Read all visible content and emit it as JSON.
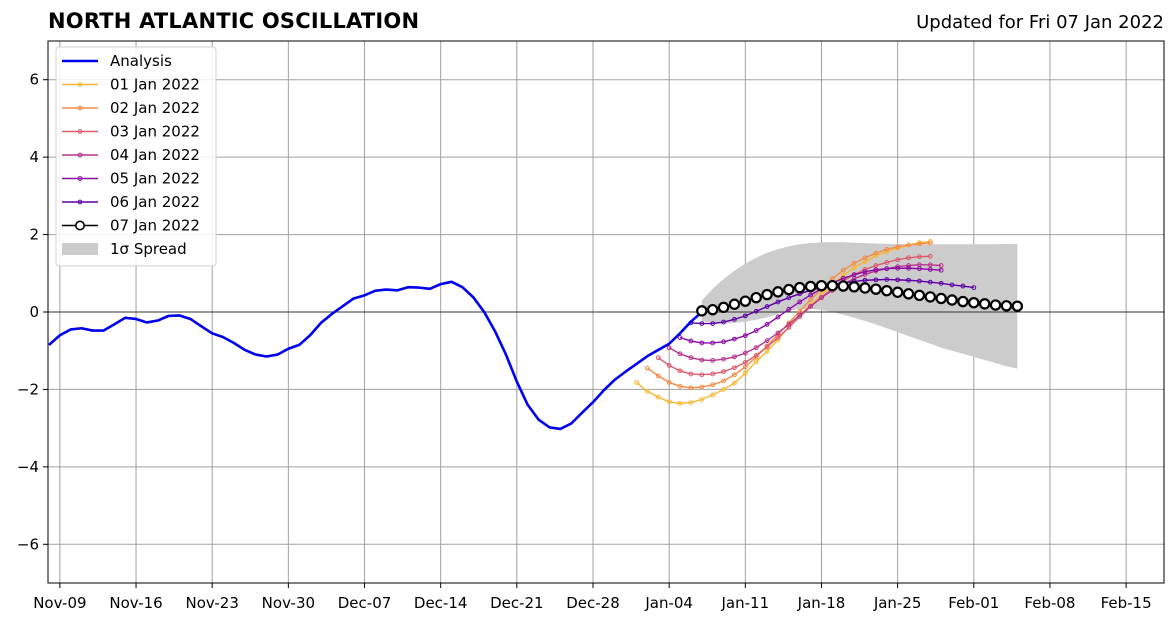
{
  "chart_data": {
    "type": "line",
    "title": "NORTH ATLANTIC OSCILLATION",
    "subtitle": "Updated for Fri 07 Jan 2022",
    "xlabel": "",
    "ylabel": "",
    "x_start_date": "2021-11-08",
    "xlim_days": [
      0,
      100
    ],
    "ylim": [
      -7,
      7
    ],
    "yticks": [
      -6,
      -4,
      -2,
      0,
      2,
      4,
      6
    ],
    "xticks": [
      {
        "day": 1,
        "label": "Nov-09"
      },
      {
        "day": 8,
        "label": "Nov-16"
      },
      {
        "day": 15,
        "label": "Nov-23"
      },
      {
        "day": 22,
        "label": "Nov-30"
      },
      {
        "day": 29,
        "label": "Dec-07"
      },
      {
        "day": 36,
        "label": "Dec-14"
      },
      {
        "day": 43,
        "label": "Dec-21"
      },
      {
        "day": 50,
        "label": "Dec-28"
      },
      {
        "day": 57,
        "label": "Jan-04"
      },
      {
        "day": 64,
        "label": "Jan-11"
      },
      {
        "day": 71,
        "label": "Jan-18"
      },
      {
        "day": 78,
        "label": "Jan-25"
      },
      {
        "day": 85,
        "label": "Feb-01"
      },
      {
        "day": 92,
        "label": "Feb-08"
      },
      {
        "day": 99,
        "label": "Feb-15"
      }
    ],
    "grid": true,
    "legend_position": "top-left",
    "analysis": {
      "name": "Analysis",
      "color": "#0000ee",
      "x_start": 0,
      "values": [
        -0.85,
        -0.6,
        -0.45,
        -0.42,
        -0.48,
        -0.48,
        -0.32,
        -0.15,
        -0.18,
        -0.27,
        -0.22,
        -0.1,
        -0.09,
        -0.18,
        -0.37,
        -0.55,
        -0.65,
        -0.8,
        -0.98,
        -1.1,
        -1.15,
        -1.1,
        -0.95,
        -0.85,
        -0.6,
        -0.28,
        -0.05,
        0.15,
        0.35,
        0.43,
        0.55,
        0.58,
        0.56,
        0.64,
        0.63,
        0.6,
        0.72,
        0.78,
        0.64,
        0.38,
        0.0,
        -0.5,
        -1.1,
        -1.8,
        -2.4,
        -2.78,
        -2.98,
        -3.02,
        -2.88,
        -2.6,
        -2.33,
        -2.02,
        -1.75,
        -1.54,
        -1.34,
        -1.14,
        -0.98,
        -0.82,
        -0.55,
        -0.25,
        0.0
      ]
    },
    "forecasts": [
      {
        "name": "01 Jan 2022",
        "color": "#f9b733",
        "x_start": 54,
        "values": [
          -1.82,
          -2.05,
          -2.2,
          -2.32,
          -2.36,
          -2.34,
          -2.26,
          -2.14,
          -2.0,
          -1.84,
          -1.58,
          -1.28,
          -1.02,
          -0.72,
          -0.38,
          -0.08,
          0.18,
          0.45,
          0.7,
          0.95,
          1.14,
          1.3,
          1.45,
          1.56,
          1.65,
          1.73,
          1.79,
          1.82
        ]
      },
      {
        "name": "02 Jan 2022",
        "color": "#f48c46",
        "x_start": 55,
        "values": [
          -1.45,
          -1.65,
          -1.82,
          -1.92,
          -1.96,
          -1.94,
          -1.88,
          -1.78,
          -1.62,
          -1.42,
          -1.16,
          -0.88,
          -0.58,
          -0.28,
          0.02,
          0.32,
          0.58,
          0.86,
          1.08,
          1.26,
          1.4,
          1.52,
          1.62,
          1.68,
          1.73,
          1.76,
          1.78
        ]
      },
      {
        "name": "03 Jan 2022",
        "color": "#dc5a6e",
        "x_start": 56,
        "values": [
          -1.18,
          -1.38,
          -1.52,
          -1.6,
          -1.62,
          -1.6,
          -1.54,
          -1.44,
          -1.3,
          -1.12,
          -0.9,
          -0.66,
          -0.4,
          -0.12,
          0.14,
          0.38,
          0.6,
          0.8,
          0.97,
          1.1,
          1.2,
          1.28,
          1.35,
          1.4,
          1.43,
          1.44
        ]
      },
      {
        "name": "04 Jan 2022",
        "color": "#b8338e",
        "x_start": 57,
        "values": [
          -0.92,
          -1.08,
          -1.18,
          -1.24,
          -1.25,
          -1.22,
          -1.16,
          -1.06,
          -0.92,
          -0.74,
          -0.54,
          -0.32,
          -0.08,
          0.15,
          0.37,
          0.56,
          0.72,
          0.86,
          0.97,
          1.06,
          1.12,
          1.17,
          1.2,
          1.22,
          1.22,
          1.2
        ]
      },
      {
        "name": "05 Jan 2022",
        "color": "#8b0aa5",
        "x_start": 58,
        "values": [
          -0.66,
          -0.75,
          -0.8,
          -0.8,
          -0.77,
          -0.7,
          -0.61,
          -0.48,
          -0.32,
          -0.13,
          0.07,
          0.26,
          0.44,
          0.6,
          0.75,
          0.87,
          0.96,
          1.04,
          1.09,
          1.12,
          1.13,
          1.13,
          1.12,
          1.1,
          1.08
        ]
      },
      {
        "name": "06 Jan 2022",
        "color": "#5c00a6",
        "x_start": 59,
        "values": [
          -0.28,
          -0.3,
          -0.3,
          -0.26,
          -0.19,
          -0.1,
          0.02,
          0.14,
          0.26,
          0.37,
          0.47,
          0.56,
          0.64,
          0.7,
          0.75,
          0.79,
          0.82,
          0.83,
          0.84,
          0.83,
          0.82,
          0.8,
          0.77,
          0.74,
          0.7,
          0.67,
          0.63
        ]
      }
    ],
    "latest": {
      "name": "07 Jan 2022",
      "color": "#000000",
      "x_start": 60,
      "values": [
        0.03,
        0.06,
        0.12,
        0.2,
        0.28,
        0.37,
        0.45,
        0.52,
        0.58,
        0.63,
        0.66,
        0.68,
        0.68,
        0.67,
        0.65,
        0.62,
        0.59,
        0.55,
        0.51,
        0.47,
        0.43,
        0.39,
        0.35,
        0.31,
        0.27,
        0.24,
        0.21,
        0.18,
        0.16,
        0.15
      ]
    },
    "spread": {
      "name": "1σ Spread",
      "color": "#cccccc",
      "x_start": 60,
      "upper": [
        0.3,
        0.6,
        0.85,
        1.07,
        1.25,
        1.4,
        1.53,
        1.62,
        1.7,
        1.75,
        1.78,
        1.8,
        1.8,
        1.8,
        1.79,
        1.78,
        1.77,
        1.76,
        1.76,
        1.75,
        1.75,
        1.75,
        1.75,
        1.75,
        1.75,
        1.75,
        1.75,
        1.75,
        1.76,
        1.76
      ],
      "lower": [
        -0.24,
        -0.28,
        -0.3,
        -0.28,
        -0.25,
        -0.2,
        -0.14,
        -0.05,
        0.03,
        0.08,
        0.08,
        0.05,
        0.0,
        -0.07,
        -0.15,
        -0.23,
        -0.32,
        -0.42,
        -0.52,
        -0.62,
        -0.72,
        -0.82,
        -0.92,
        -1.0,
        -1.08,
        -1.16,
        -1.24,
        -1.32,
        -1.4,
        -1.46
      ]
    }
  }
}
